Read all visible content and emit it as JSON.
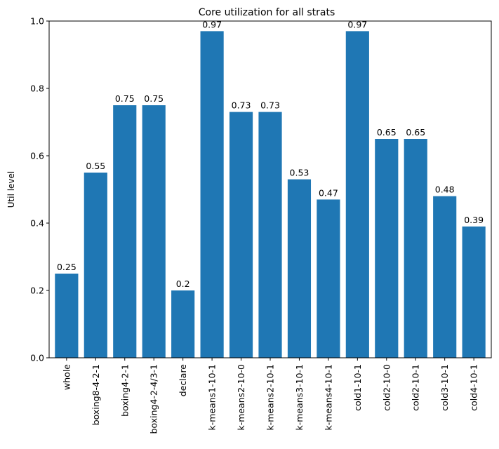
{
  "chart_data": {
    "type": "bar",
    "title": "Core utilization for all strats",
    "xlabel": "",
    "ylabel": "Util level",
    "ylim": [
      0,
      1.0
    ],
    "yticks": [
      "0.0",
      "0.2",
      "0.4",
      "0.6",
      "0.8",
      "1.0"
    ],
    "grid": false,
    "bar_color": "#1f77b4",
    "categories": [
      "whole",
      "boxing8-4-2-1",
      "boxing4-2-1",
      "boxing4-2-4/3-1",
      "declare",
      "k-means1-10-1",
      "k-means2-10-0",
      "k-means2-10-1",
      "k-means3-10-1",
      "k-means4-10-1",
      "cold1-10-1",
      "cold2-10-0",
      "cold2-10-1",
      "cold3-10-1",
      "cold4-10-1"
    ],
    "values": [
      0.25,
      0.55,
      0.75,
      0.75,
      0.2,
      0.97,
      0.73,
      0.73,
      0.53,
      0.47,
      0.97,
      0.65,
      0.65,
      0.48,
      0.39
    ],
    "data_labels": [
      "0.25",
      "0.55",
      "0.75",
      "0.75",
      "0.2",
      "0.97",
      "0.73",
      "0.73",
      "0.53",
      "0.47",
      "0.97",
      "0.65",
      "0.65",
      "0.48",
      "0.39"
    ]
  }
}
